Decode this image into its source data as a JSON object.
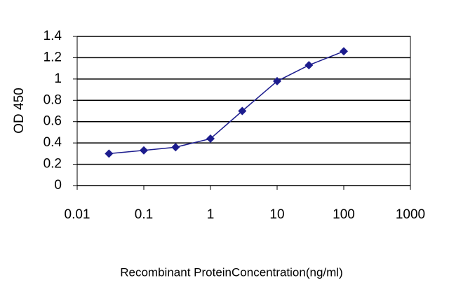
{
  "chart_data": {
    "type": "line",
    "x_label": "Recombinant ProteinConcentration(ng/ml)",
    "y_label": "OD 450",
    "x": [
      0.03,
      0.1,
      0.3,
      1,
      3,
      10,
      30,
      100
    ],
    "values": [
      0.3,
      0.33,
      0.36,
      0.44,
      0.7,
      0.98,
      1.13,
      1.26
    ],
    "color": "#1c1c8e",
    "xscale": "log",
    "xlim": [
      0.01,
      1000
    ],
    "xticks": [
      0.01,
      0.1,
      1,
      10,
      100,
      1000
    ],
    "ylim": [
      0,
      1.4
    ],
    "yticks": [
      0,
      0.2,
      0.4,
      0.6,
      0.8,
      1,
      1.2,
      1.4
    ],
    "grid": true
  }
}
